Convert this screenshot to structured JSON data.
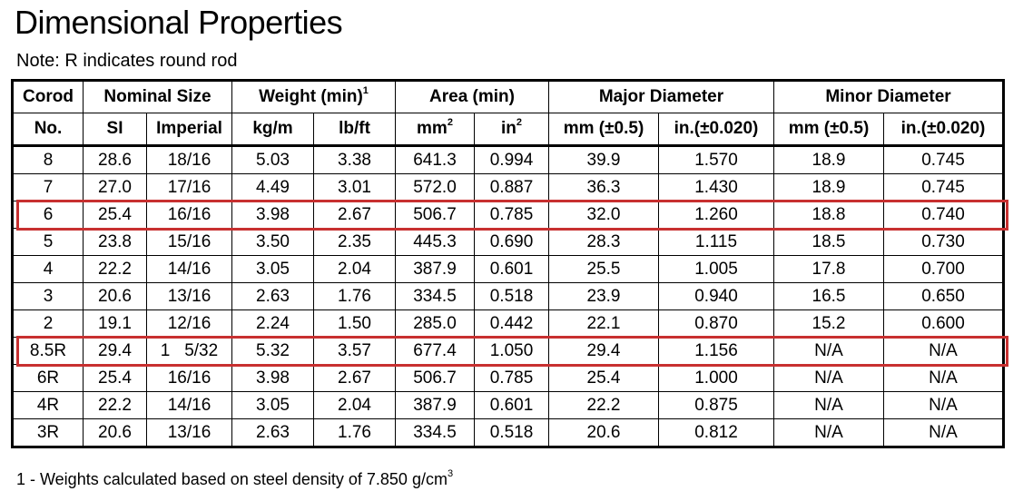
{
  "title": "Dimensional Properties",
  "note": "Note:  R indicates round rod",
  "headers": {
    "row1": {
      "corod": "Corod",
      "nominal": "Nominal Size",
      "weight": "Weight (min)",
      "weight_sup": "1",
      "area": "Area (min)",
      "major": "Major Diameter",
      "minor": "Minor Diameter"
    },
    "row2": [
      "No.",
      "SI",
      "Imperial",
      "kg/m",
      "lb/ft",
      "mm",
      "in",
      "mm (±0.5)",
      "in.(±0.020)",
      "mm (±0.5)",
      "in.(±0.020)"
    ],
    "row2_sups": {
      "mm": "2",
      "in": "2"
    }
  },
  "rows": [
    [
      "8",
      "28.6",
      "18/16",
      "5.03",
      "3.38",
      "641.3",
      "0.994",
      "39.9",
      "1.570",
      "18.9",
      "0.745"
    ],
    [
      "7",
      "27.0",
      "17/16",
      "4.49",
      "3.01",
      "572.0",
      "0.887",
      "36.3",
      "1.430",
      "18.9",
      "0.745"
    ],
    [
      "6",
      "25.4",
      "16/16",
      "3.98",
      "2.67",
      "506.7",
      "0.785",
      "32.0",
      "1.260",
      "18.8",
      "0.740"
    ],
    [
      "5",
      "23.8",
      "15/16",
      "3.50",
      "2.35",
      "445.3",
      "0.690",
      "28.3",
      "1.115",
      "18.5",
      "0.730"
    ],
    [
      "4",
      "22.2",
      "14/16",
      "3.05",
      "2.04",
      "387.9",
      "0.601",
      "25.5",
      "1.005",
      "17.8",
      "0.700"
    ],
    [
      "3",
      "20.6",
      "13/16",
      "2.63",
      "1.76",
      "334.5",
      "0.518",
      "23.9",
      "0.940",
      "16.5",
      "0.650"
    ],
    [
      "2",
      "19.1",
      "12/16",
      "2.24",
      "1.50",
      "285.0",
      "0.442",
      "22.1",
      "0.870",
      "15.2",
      "0.600"
    ],
    [
      "8.5R",
      "29.4",
      "1   5/32",
      "5.32",
      "3.57",
      "677.4",
      "1.050",
      "29.4",
      "1.156",
      "N/A",
      "N/A"
    ],
    [
      "6R",
      "25.4",
      "16/16",
      "3.98",
      "2.67",
      "506.7",
      "0.785",
      "25.4",
      "1.000",
      "N/A",
      "N/A"
    ],
    [
      "4R",
      "22.2",
      "14/16",
      "3.05",
      "2.04",
      "387.9",
      "0.601",
      "22.2",
      "0.875",
      "N/A",
      "N/A"
    ],
    [
      "3R",
      "20.6",
      "13/16",
      "2.63",
      "1.76",
      "334.5",
      "0.518",
      "20.6",
      "0.812",
      "N/A",
      "N/A"
    ]
  ],
  "highlighted_rows": [
    "6",
    "8.5R"
  ],
  "highlight_color": "#c83030",
  "footnote": "1 - Weights calculated based on steel density of  7.850 g/cm",
  "footnote_sup": "3"
}
